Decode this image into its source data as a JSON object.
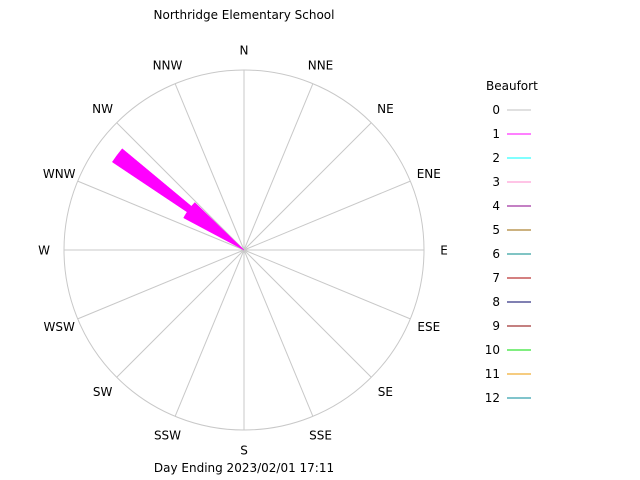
{
  "chart_data": {
    "type": "wind-rose",
    "title": "Northridge Elementary School",
    "caption": "Day Ending 2023/02/01 17:11",
    "directions": [
      "N",
      "NNE",
      "NE",
      "ENE",
      "E",
      "ESE",
      "SE",
      "SSE",
      "S",
      "SSW",
      "SW",
      "WSW",
      "W",
      "WNW",
      "NW",
      "NNW"
    ],
    "legend_title": "Beaufort",
    "legend_position": "right",
    "legend": [
      {
        "label": "0",
        "color": "#c0c0c0"
      },
      {
        "label": "1",
        "color": "#ff00ff"
      },
      {
        "label": "2",
        "color": "#00ffff"
      },
      {
        "label": "3",
        "color": "#ff88cc"
      },
      {
        "label": "4",
        "color": "#880088"
      },
      {
        "label": "5",
        "color": "#996600"
      },
      {
        "label": "6",
        "color": "#008888"
      },
      {
        "label": "7",
        "color": "#aa0000"
      },
      {
        "label": "8",
        "color": "#000066"
      },
      {
        "label": "9",
        "color": "#880000"
      },
      {
        "label": "10",
        "color": "#00dd00"
      },
      {
        "label": "11",
        "color": "#ee9900"
      },
      {
        "label": "12",
        "color": "#008899"
      }
    ],
    "series": [
      {
        "beaufort": "1",
        "color": "#ff00ff",
        "direction": "NW",
        "fraction": 0.88,
        "deg_from": 303.75,
        "deg_to": 309.75
      },
      {
        "beaufort": "1",
        "color": "#ff00ff",
        "direction": "NW",
        "fraction": 0.38,
        "deg_from": 306,
        "deg_to": 314
      },
      {
        "beaufort": "1",
        "color": "#ff00ff",
        "direction": "WNW",
        "fraction": 0.38,
        "deg_from": 298,
        "deg_to": 304
      }
    ],
    "grid": true
  }
}
